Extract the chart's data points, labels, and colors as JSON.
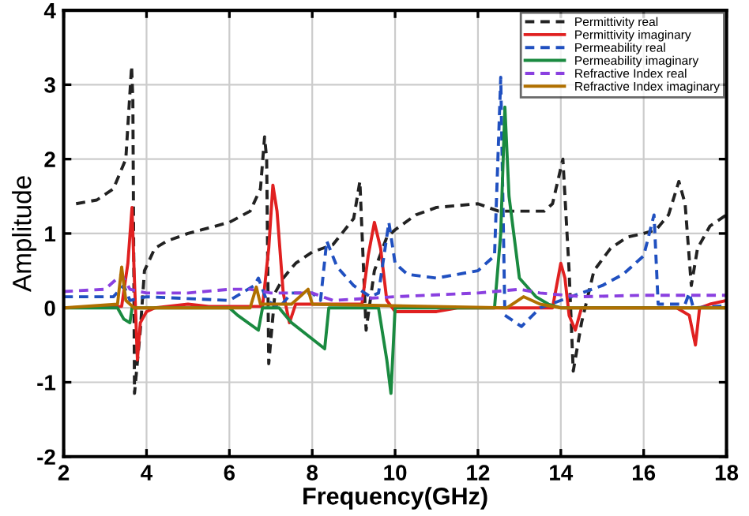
{
  "chart_data": {
    "type": "line",
    "xlabel": "Frequency(GHz)",
    "ylabel": "Amplitude",
    "xlim": [
      2,
      18
    ],
    "ylim": [
      -2,
      4
    ],
    "xticks": [
      2,
      4,
      6,
      8,
      10,
      12,
      14,
      16,
      18
    ],
    "yticks": [
      -2,
      -1,
      0,
      1,
      2,
      3,
      4
    ],
    "grid": true,
    "legend": "top right",
    "series": [
      {
        "name": "Permittivity real",
        "color": "#222222",
        "line_style": "dashed",
        "x": [
          2.3,
          2.8,
          3.2,
          3.5,
          3.64,
          3.67,
          3.71,
          3.85,
          3.95,
          4.2,
          4.5,
          5,
          6,
          6.5,
          6.75,
          6.85,
          6.9,
          6.95,
          7.1,
          7.3,
          7.6,
          8,
          8.5,
          9,
          9.15,
          9.3,
          9.5,
          9.8,
          10,
          10.5,
          11,
          12,
          12.5,
          13,
          13.6,
          13.8,
          14.05,
          14.2,
          14.3,
          14.5,
          14.8,
          15.2,
          15.6,
          16,
          16.3,
          16.6,
          16.85,
          17.0,
          17.15,
          17.3,
          17.6,
          18
        ],
        "values": [
          1.4,
          1.45,
          1.6,
          2.0,
          3.25,
          2.8,
          -1.15,
          -0.3,
          0.5,
          0.8,
          0.9,
          1.0,
          1.15,
          1.3,
          1.6,
          2.3,
          2.0,
          -0.75,
          0.2,
          0.4,
          0.6,
          0.75,
          0.85,
          1.2,
          1.7,
          -0.3,
          0.5,
          0.95,
          1.05,
          1.25,
          1.35,
          1.4,
          1.3,
          1.3,
          1.3,
          1.4,
          2.0,
          0.5,
          -0.85,
          -0.2,
          0.5,
          0.8,
          0.95,
          1.0,
          1.05,
          1.25,
          1.7,
          1.4,
          0.3,
          0.8,
          1.1,
          1.25
        ]
      },
      {
        "name": "Permittivity imaginary",
        "color": "#e02020",
        "line_style": "solid",
        "x": [
          2,
          3.4,
          3.55,
          3.65,
          3.7,
          3.78,
          3.85,
          4.0,
          4.2,
          5,
          5.5,
          6.8,
          6.95,
          7.05,
          7.15,
          7.3,
          7.45,
          7.6,
          9.2,
          9.35,
          9.5,
          9.65,
          9.8,
          10,
          11,
          11.5,
          13.8,
          14,
          14.1,
          14.2,
          14.35,
          14.5,
          15,
          16.8,
          17.1,
          17.25,
          17.35,
          17.6,
          18
        ],
        "values": [
          0,
          0.02,
          0.6,
          1.35,
          0.5,
          -0.7,
          -0.2,
          -0.05,
          0,
          0.05,
          0.02,
          0.02,
          0.8,
          1.65,
          1.3,
          0.2,
          -0.2,
          0.05,
          0.05,
          0.7,
          1.15,
          0.8,
          0.1,
          -0.05,
          -0.05,
          0,
          0,
          0.6,
          0.4,
          -0.1,
          -0.3,
          0,
          0,
          0,
          -0.1,
          -0.5,
          0,
          0.05,
          0.1
        ]
      },
      {
        "name": "Permeability real",
        "color": "#2050c0",
        "line_style": "dashed",
        "x": [
          2,
          3.2,
          3.45,
          3.6,
          4,
          6,
          6.6,
          6.7,
          6.9,
          7.2,
          7.5,
          8,
          8.2,
          8.35,
          8.6,
          9,
          9.4,
          9.6,
          9.85,
          10,
          10.3,
          11,
          12,
          12.4,
          12.55,
          12.65,
          13.05,
          13.5,
          14,
          14.5,
          15,
          15.5,
          16.0,
          16.25,
          16.35,
          17,
          17.1,
          17.2,
          18
        ],
        "values": [
          0.15,
          0.15,
          0.3,
          0.1,
          0.15,
          0.1,
          0.3,
          0.4,
          0.1,
          0,
          0.2,
          0.2,
          0.1,
          0.9,
          0.55,
          0.3,
          0.15,
          0.2,
          1.15,
          0.6,
          0.45,
          0.4,
          0.5,
          0.7,
          3.1,
          -0.1,
          -0.25,
          0,
          0.1,
          0.2,
          0.3,
          0.45,
          0.7,
          1.25,
          0.05,
          0.05,
          0.2,
          0,
          0.03
        ]
      },
      {
        "name": "Permeability imaginary",
        "color": "#1a8a40",
        "line_style": "solid",
        "x": [
          2,
          3.3,
          3.45,
          3.6,
          3.65,
          6,
          6.2,
          6.7,
          6.8,
          7.2,
          7.5,
          8.3,
          8.4,
          9.6,
          9.8,
          9.9,
          10,
          12.4,
          12.55,
          12.65,
          12.75,
          13,
          13.4,
          13.7,
          14,
          18
        ],
        "values": [
          0,
          0,
          -0.15,
          -0.2,
          0,
          0,
          -0.1,
          -0.3,
          0,
          0,
          -0.2,
          -0.55,
          0,
          0,
          -0.7,
          -1.15,
          0,
          0,
          1.0,
          2.7,
          1.5,
          0.4,
          0.15,
          0.05,
          0,
          0
        ]
      },
      {
        "name": "Refractive Index real",
        "color": "#8a40e0",
        "line_style": "dashed",
        "x": [
          2,
          3,
          3.4,
          3.6,
          4,
          5,
          6,
          6.5,
          7,
          8,
          8.5,
          10,
          12,
          13,
          13.5,
          14.5,
          16,
          18
        ],
        "values": [
          0.22,
          0.25,
          0.45,
          0.25,
          0.2,
          0.2,
          0.25,
          0.25,
          0.2,
          0.2,
          0.1,
          0.15,
          0.2,
          0.25,
          0.2,
          0.15,
          0.17,
          0.17
        ]
      },
      {
        "name": "Refractive Index imaginary",
        "color": "#b07000",
        "line_style": "solid",
        "x": [
          2,
          3.3,
          3.4,
          3.5,
          3.7,
          6.5,
          6.65,
          6.75,
          7.5,
          7.9,
          8,
          12.7,
          13.1,
          13.5,
          14,
          18
        ],
        "values": [
          0,
          0.05,
          0.55,
          0.1,
          0,
          0,
          0.28,
          0.05,
          0.05,
          0.25,
          0.05,
          0,
          0.15,
          0.05,
          0,
          0
        ]
      }
    ]
  }
}
